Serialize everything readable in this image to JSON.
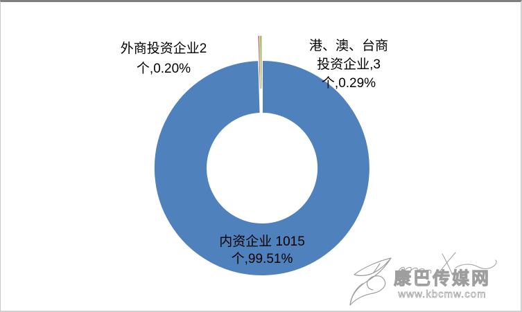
{
  "frame": {
    "background": "#ffffff",
    "border_top_color": "#7f7f7f",
    "border_side_color": "#d2d2d2"
  },
  "chart_data": {
    "type": "pie",
    "subtype": "donut",
    "title": "",
    "legend": "none",
    "categories": [
      "内资企业",
      "外商投资企业",
      "港、澳、台商投资企业"
    ],
    "values": [
      1015,
      2,
      3
    ],
    "unit": "个",
    "percent_labels": [
      "99.51%",
      "0.20%",
      "0.29%"
    ],
    "colors": [
      "#4f81bd",
      "#c0504d",
      "#9bbb59"
    ],
    "exploded": [
      false,
      true,
      true
    ],
    "hole_ratio": 0.5,
    "label_color": "#000000",
    "data_labels": {
      "domestic": "内资企业 1015\n个,99.51%",
      "foreign": "外商投资企业2\n个,0.20%",
      "hmt": "港、澳、台商\n投资企业,3\n个,0.29%"
    }
  },
  "watermark": {
    "site_name": "康巴传媒网",
    "site_url": "www.kbcmw.com",
    "color": "#9a9a9a"
  }
}
